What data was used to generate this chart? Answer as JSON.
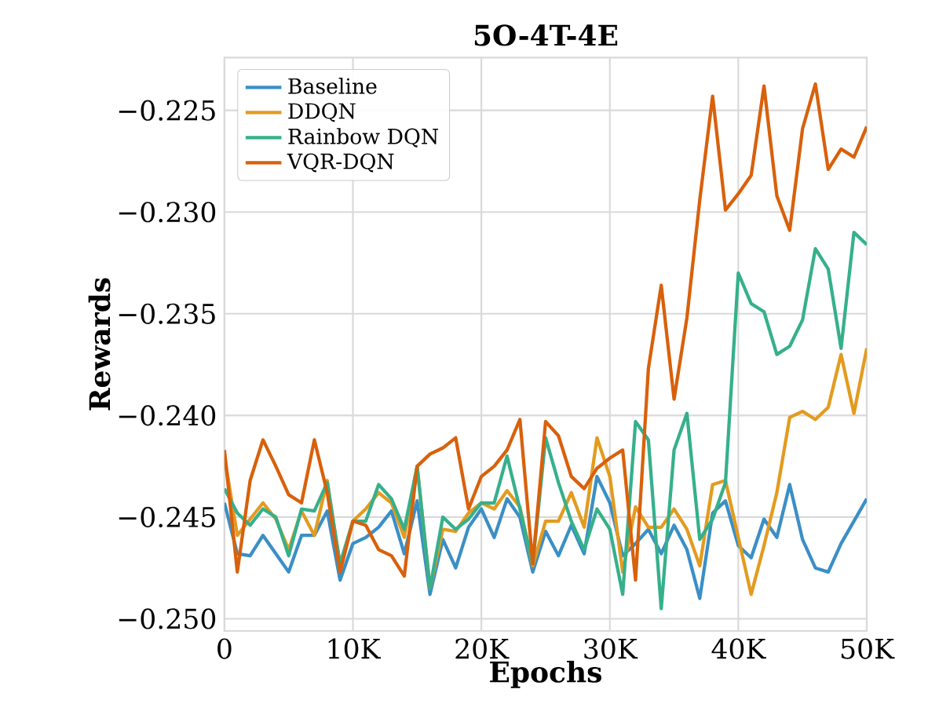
{
  "chart_data": {
    "type": "line",
    "title": "5O-4T-4E",
    "xlabel": "Epochs",
    "ylabel": "Rewards",
    "x": [
      0,
      1000,
      2000,
      3000,
      4000,
      5000,
      6000,
      7000,
      8000,
      9000,
      10000,
      11000,
      12000,
      13000,
      14000,
      15000,
      16000,
      17000,
      18000,
      19000,
      20000,
      21000,
      22000,
      23000,
      24000,
      25000,
      26000,
      27000,
      28000,
      29000,
      30000,
      31000,
      32000,
      33000,
      34000,
      35000,
      36000,
      37000,
      38000,
      39000,
      40000,
      41000,
      42000,
      43000,
      44000,
      45000,
      46000,
      47000,
      48000,
      49000,
      50000
    ],
    "xlim": [
      0,
      50000
    ],
    "ylim": [
      -0.2506,
      -0.2224
    ],
    "xticks": [
      0,
      {
        "value": 10000,
        "label": "10K"
      },
      {
        "value": 20000,
        "label": "20K"
      },
      {
        "value": 30000,
        "label": "30K"
      },
      {
        "value": 40000,
        "label": "40K"
      },
      {
        "value": 50000,
        "label": "50K"
      }
    ],
    "yticks": [
      {
        "value": -0.25,
        "label": "−0.250"
      },
      {
        "value": -0.245,
        "label": "−0.245"
      },
      {
        "value": -0.24,
        "label": "−0.240"
      },
      {
        "value": -0.235,
        "label": "−0.235"
      },
      {
        "value": -0.23,
        "label": "−0.230"
      },
      {
        "value": -0.225,
        "label": "−0.225"
      }
    ],
    "grid": true,
    "legend": "top left",
    "marker": "none",
    "line_style": "solid",
    "series": [
      {
        "name": "Baseline",
        "color": "#3b8fc5",
        "values": [
          -0.2443,
          -0.2468,
          -0.2469,
          -0.2459,
          -0.2468,
          -0.2477,
          -0.2459,
          -0.2459,
          -0.2447,
          -0.2481,
          -0.2463,
          -0.246,
          -0.2455,
          -0.2447,
          -0.2468,
          -0.2442,
          -0.2488,
          -0.2461,
          -0.2475,
          -0.2455,
          -0.2446,
          -0.246,
          -0.2441,
          -0.245,
          -0.2477,
          -0.2457,
          -0.2469,
          -0.2454,
          -0.2468,
          -0.243,
          -0.2443,
          -0.2469,
          -0.2463,
          -0.2456,
          -0.2468,
          -0.2454,
          -0.2466,
          -0.249,
          -0.2448,
          -0.2442,
          -0.2464,
          -0.247,
          -0.2451,
          -0.246,
          -0.2434,
          -0.2461,
          -0.2475,
          -0.2477,
          -0.2463,
          -0.2452,
          -0.2441
        ]
      },
      {
        "name": "DDQN",
        "color": "#e39b1f",
        "values": [
          -0.242,
          -0.2459,
          -0.2451,
          -0.2443,
          -0.2451,
          -0.2466,
          -0.2447,
          -0.2459,
          -0.2432,
          -0.2474,
          -0.2452,
          -0.2446,
          -0.2438,
          -0.2443,
          -0.246,
          -0.2425,
          -0.2485,
          -0.2456,
          -0.2457,
          -0.2448,
          -0.2443,
          -0.2446,
          -0.2437,
          -0.2445,
          -0.2474,
          -0.2452,
          -0.2452,
          -0.2438,
          -0.2455,
          -0.2411,
          -0.243,
          -0.2477,
          -0.2445,
          -0.2455,
          -0.2455,
          -0.2446,
          -0.2456,
          -0.2474,
          -0.2434,
          -0.2432,
          -0.246,
          -0.2488,
          -0.2464,
          -0.2438,
          -0.2401,
          -0.2398,
          -0.2402,
          -0.2396,
          -0.237,
          -0.2399,
          -0.2367
        ]
      },
      {
        "name": "Rainbow DQN",
        "color": "#36b08b",
        "values": [
          -0.2436,
          -0.2448,
          -0.2454,
          -0.2446,
          -0.245,
          -0.2469,
          -0.2446,
          -0.2447,
          -0.2433,
          -0.2473,
          -0.2452,
          -0.2452,
          -0.2434,
          -0.2441,
          -0.2456,
          -0.2425,
          -0.2485,
          -0.245,
          -0.2456,
          -0.2451,
          -0.2443,
          -0.2443,
          -0.242,
          -0.2446,
          -0.2473,
          -0.2411,
          -0.2433,
          -0.2452,
          -0.2466,
          -0.2446,
          -0.2456,
          -0.2488,
          -0.2403,
          -0.2412,
          -0.2495,
          -0.2417,
          -0.2399,
          -0.2461,
          -0.2451,
          -0.2433,
          -0.233,
          -0.2345,
          -0.2349,
          -0.237,
          -0.2366,
          -0.2353,
          -0.2318,
          -0.2328,
          -0.2367,
          -0.231,
          -0.2316
        ]
      },
      {
        "name": "VQR-DQN",
        "color": "#d8610c",
        "values": [
          -0.2417,
          -0.2477,
          -0.2432,
          -0.2412,
          -0.2425,
          -0.2439,
          -0.2443,
          -0.2412,
          -0.2438,
          -0.2477,
          -0.2452,
          -0.2454,
          -0.2466,
          -0.2469,
          -0.2479,
          -0.2425,
          -0.2419,
          -0.2416,
          -0.2411,
          -0.2446,
          -0.243,
          -0.2425,
          -0.2417,
          -0.2402,
          -0.2473,
          -0.2403,
          -0.241,
          -0.243,
          -0.2436,
          -0.2426,
          -0.2421,
          -0.2417,
          -0.2481,
          -0.2377,
          -0.2336,
          -0.2392,
          -0.2352,
          -0.2294,
          -0.2243,
          -0.2299,
          -0.2291,
          -0.2282,
          -0.2238,
          -0.2292,
          -0.2309,
          -0.2259,
          -0.2237,
          -0.2279,
          -0.2269,
          -0.2273,
          -0.2258
        ]
      }
    ]
  }
}
